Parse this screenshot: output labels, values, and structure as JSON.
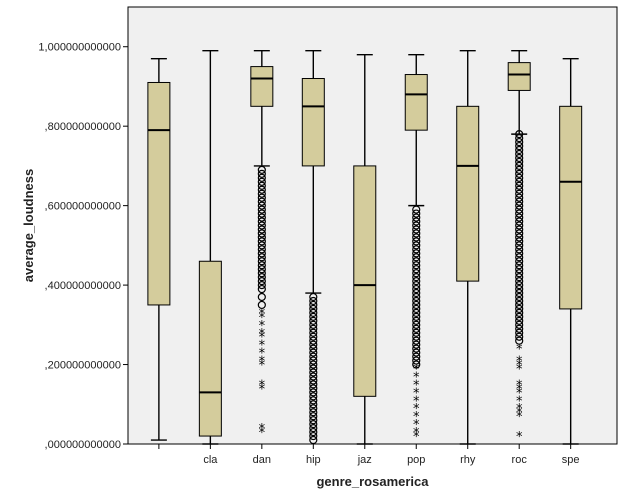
{
  "chart_data": {
    "type": "boxplot",
    "xlabel": "genre_rosamerica",
    "ylabel": "average_loudness",
    "ylim": [
      0,
      1.1
    ],
    "yticks": [
      0,
      0.2,
      0.4,
      0.6,
      0.8,
      1.0
    ],
    "ytick_labels": [
      ",000000000000",
      ",200000000000",
      ",400000000000",
      ",600000000000",
      ",800000000000",
      "1,000000000000"
    ],
    "categories": [
      "",
      "cla",
      "dan",
      "hip",
      "jaz",
      "pop",
      "rhy",
      "roc",
      "spe"
    ],
    "box_color": "#d4cc9c",
    "plot_background": "#f0f0f0",
    "boxes": [
      {
        "min": 0.01,
        "q1": 0.35,
        "median": 0.79,
        "q3": 0.91,
        "max": 0.97,
        "outliers": [],
        "extremes": []
      },
      {
        "min": 0.0,
        "q1": 0.02,
        "median": 0.13,
        "q3": 0.46,
        "max": 0.99,
        "outliers": [],
        "extremes": []
      },
      {
        "min": 0.7,
        "q1": 0.85,
        "median": 0.92,
        "q3": 0.95,
        "max": 0.99,
        "outliers": [
          0.69,
          0.68,
          0.67,
          0.66,
          0.65,
          0.64,
          0.63,
          0.62,
          0.61,
          0.6,
          0.59,
          0.58,
          0.57,
          0.56,
          0.55,
          0.54,
          0.53,
          0.52,
          0.51,
          0.5,
          0.49,
          0.48,
          0.47,
          0.46,
          0.45,
          0.44,
          0.43,
          0.42,
          0.41,
          0.4,
          0.39,
          0.37,
          0.35
        ],
        "extremes": [
          0.33,
          0.32,
          0.3,
          0.28,
          0.27,
          0.25,
          0.23,
          0.21,
          0.2,
          0.15,
          0.14,
          0.04,
          0.03
        ]
      },
      {
        "min": 0.38,
        "q1": 0.7,
        "median": 0.85,
        "q3": 0.92,
        "max": 0.99,
        "outliers": [
          0.37,
          0.36,
          0.35,
          0.34,
          0.33,
          0.32,
          0.31,
          0.3,
          0.29,
          0.28,
          0.27,
          0.26,
          0.25,
          0.24,
          0.23,
          0.22,
          0.21,
          0.2,
          0.19,
          0.18,
          0.17,
          0.16,
          0.15,
          0.14,
          0.13,
          0.12,
          0.11,
          0.1,
          0.09,
          0.08,
          0.07,
          0.06,
          0.05,
          0.04,
          0.03,
          0.02,
          0.01
        ],
        "extremes": []
      },
      {
        "min": 0.0,
        "q1": 0.12,
        "median": 0.4,
        "q3": 0.7,
        "max": 0.98,
        "outliers": [],
        "extremes": []
      },
      {
        "min": 0.6,
        "q1": 0.79,
        "median": 0.88,
        "q3": 0.93,
        "max": 0.98,
        "outliers": [
          0.59,
          0.58,
          0.57,
          0.56,
          0.55,
          0.54,
          0.53,
          0.52,
          0.51,
          0.5,
          0.49,
          0.48,
          0.47,
          0.46,
          0.45,
          0.44,
          0.43,
          0.42,
          0.41,
          0.4,
          0.39,
          0.38,
          0.37,
          0.36,
          0.35,
          0.34,
          0.33,
          0.32,
          0.31,
          0.3,
          0.29,
          0.28,
          0.27,
          0.26,
          0.25,
          0.24,
          0.23,
          0.22,
          0.21,
          0.2
        ],
        "extremes": [
          0.19,
          0.17,
          0.15,
          0.13,
          0.11,
          0.09,
          0.07,
          0.05,
          0.03,
          0.02
        ]
      },
      {
        "min": 0.0,
        "q1": 0.41,
        "median": 0.7,
        "q3": 0.85,
        "max": 0.99,
        "outliers": [],
        "extremes": []
      },
      {
        "min": 0.78,
        "q1": 0.89,
        "median": 0.93,
        "q3": 0.96,
        "max": 0.99,
        "outliers": [
          0.78,
          0.77,
          0.76,
          0.75,
          0.74,
          0.73,
          0.72,
          0.71,
          0.7,
          0.69,
          0.68,
          0.67,
          0.66,
          0.65,
          0.64,
          0.63,
          0.62,
          0.61,
          0.6,
          0.59,
          0.58,
          0.57,
          0.56,
          0.55,
          0.54,
          0.53,
          0.52,
          0.51,
          0.5,
          0.49,
          0.48,
          0.47,
          0.46,
          0.45,
          0.44,
          0.43,
          0.42,
          0.41,
          0.4,
          0.39,
          0.38,
          0.37,
          0.36,
          0.35,
          0.34,
          0.33,
          0.32,
          0.31,
          0.3,
          0.29,
          0.28,
          0.27,
          0.26
        ],
        "extremes": [
          0.24,
          0.21,
          0.2,
          0.19,
          0.15,
          0.14,
          0.13,
          0.11,
          0.09,
          0.08,
          0.07,
          0.02
        ]
      },
      {
        "min": 0.0,
        "q1": 0.34,
        "median": 0.66,
        "q3": 0.85,
        "max": 0.97,
        "outliers": [],
        "extremes": []
      }
    ]
  }
}
